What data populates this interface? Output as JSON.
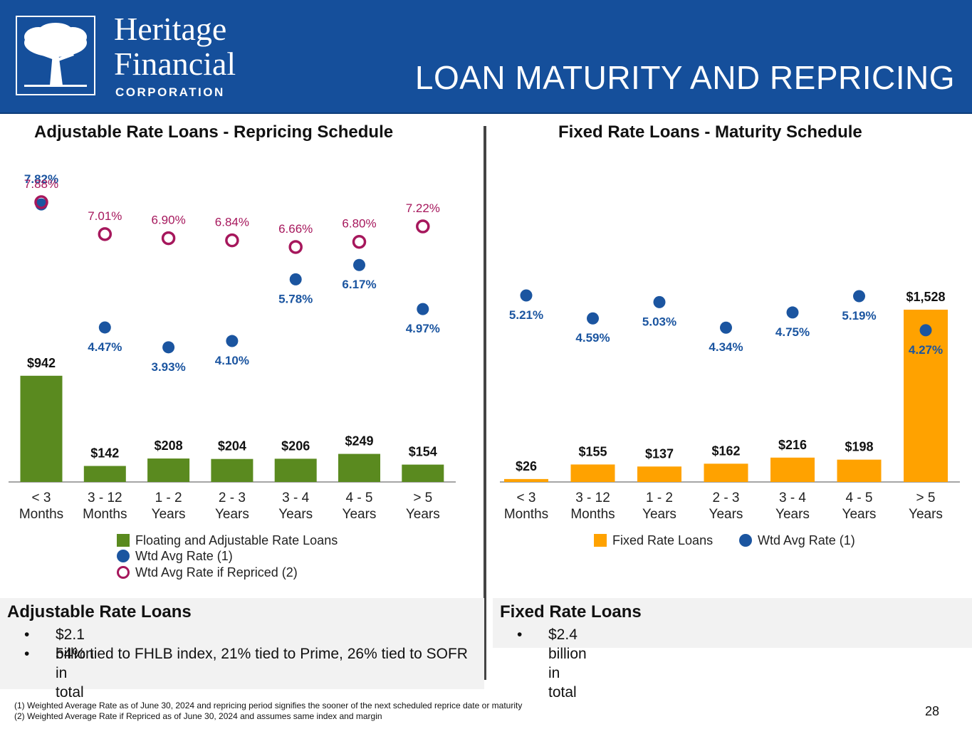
{
  "header": {
    "logo_line1": "Heritage",
    "logo_line2": "Financial",
    "logo_line3": "CORPORATION",
    "title": "LOAN MATURITY AND REPRICING"
  },
  "colors": {
    "header_bg": "#154f9b",
    "adjustable_bar": "#5a8a1f",
    "fixed_bar": "#ffa200",
    "wtd_dot": "#1b55a0",
    "repriced_ring": "#a6175c"
  },
  "chart_data": [
    {
      "type": "bar",
      "title": "Adjustable Rate Loans - Repricing Schedule",
      "categories": [
        "< 3\nMonths",
        "3 - 12\nMonths",
        "1 - 2\nYears",
        "2 - 3\nYears",
        "3 - 4\nYears",
        "4 - 5\nYears",
        "> 5\nYears"
      ],
      "series": [
        {
          "name": "Floating and Adjustable Rate Loans",
          "kind": "bar",
          "values": [
            942,
            142,
            208,
            204,
            206,
            249,
            154
          ],
          "labels": [
            "$942",
            "$142",
            "$208",
            "$204",
            "$206",
            "$249",
            "$154"
          ]
        },
        {
          "name": "Wtd Avg Rate (1)",
          "kind": "dot",
          "values": [
            7.82,
            4.47,
            3.93,
            4.1,
            5.78,
            6.17,
            4.97
          ],
          "labels": [
            "7.82%",
            "4.47%",
            "3.93%",
            "4.10%",
            "5.78%",
            "6.17%",
            "4.97%"
          ]
        },
        {
          "name": "Wtd Avg Rate if Repriced (2)",
          "kind": "ring",
          "values": [
            7.88,
            7.01,
            6.9,
            6.84,
            6.66,
            6.8,
            7.22
          ],
          "labels": [
            "7.88%",
            "7.01%",
            "6.90%",
            "6.84%",
            "6.66%",
            "6.80%",
            "7.22%"
          ]
        }
      ],
      "ylim_bars": [
        0,
        1550
      ],
      "ylim_rates": [
        0,
        9.2
      ]
    },
    {
      "type": "bar",
      "title": "Fixed Rate Loans - Maturity Schedule",
      "categories": [
        "< 3\nMonths",
        "3 - 12\nMonths",
        "1 - 2\nYears",
        "2 - 3\nYears",
        "3 - 4\nYears",
        "4 - 5\nYears",
        "> 5\nYears"
      ],
      "series": [
        {
          "name": "Fixed Rate Loans",
          "kind": "bar",
          "values": [
            26,
            155,
            137,
            162,
            216,
            198,
            1528
          ],
          "labels": [
            "$26",
            "$155",
            "$137",
            "$162",
            "$216",
            "$198",
            "$1,528"
          ]
        },
        {
          "name": "Wtd Avg Rate (1)",
          "kind": "dot",
          "values": [
            5.21,
            4.59,
            5.03,
            4.34,
            4.75,
            5.19,
            4.27
          ],
          "labels": [
            "5.21%",
            "4.59%",
            "5.03%",
            "4.34%",
            "4.75%",
            "5.19%",
            "4.27%"
          ]
        }
      ],
      "ylim_bars": [
        0,
        1550
      ],
      "ylim_rates": [
        0,
        9.2
      ]
    }
  ],
  "left_legend": {
    "bar": "Floating and Adjustable Rate Loans",
    "dot": "Wtd Avg Rate (1)",
    "ring": "Wtd Avg Rate if Repriced (2)"
  },
  "right_legend": {
    "bar": "Fixed Rate Loans",
    "dot": "Wtd Avg Rate (1)"
  },
  "left_notes": {
    "title": "Adjustable Rate Loans",
    "bullet_char": "•",
    "bullets": [
      "$2.1 billion in total",
      "54% tied to FHLB index, 21% tied to Prime, 26% tied to SOFR"
    ]
  },
  "right_notes": {
    "title": "Fixed Rate Loans",
    "bullet_char": "•",
    "bullets": [
      "$2.4 billion in total"
    ]
  },
  "footnotes": [
    "(1) Weighted Average Rate as of June 30, 2024 and repricing period signifies the sooner of the next scheduled reprice date or maturity",
    "(2) Weighted Average Rate if Repriced as of June 30, 2024 and assumes same index and margin"
  ],
  "page_number": "28"
}
